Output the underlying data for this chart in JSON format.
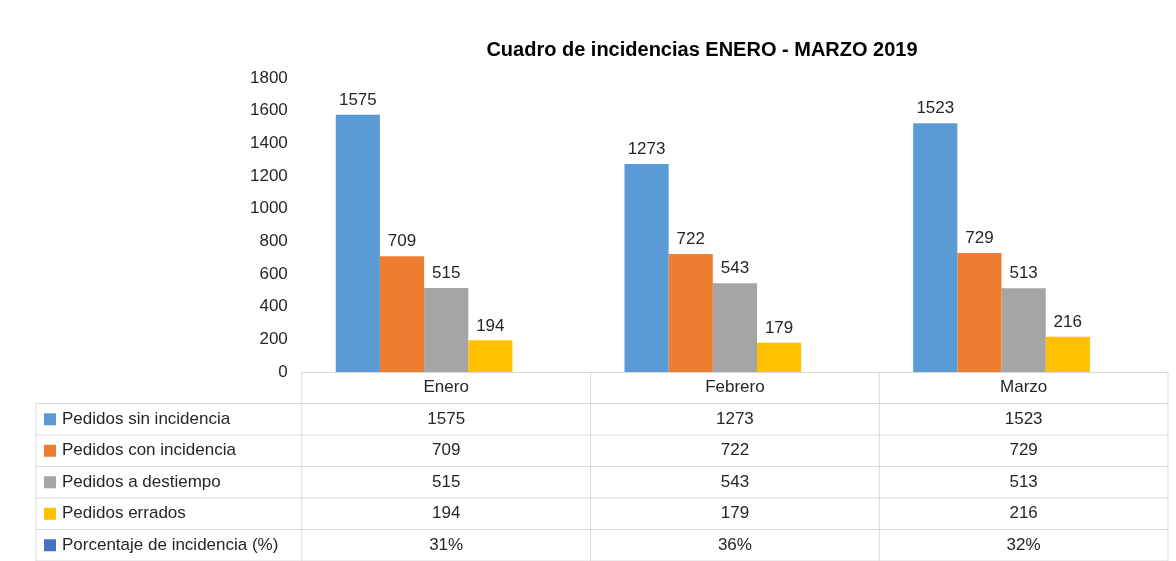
{
  "chart_data": {
    "type": "bar",
    "title": "Cuadro de incidencias ENERO - MARZO 2019",
    "categories": [
      "Enero",
      "Febrero",
      "Marzo"
    ],
    "series": [
      {
        "name": "Pedidos sin incidencia",
        "color": "#5b9bd5",
        "values": [
          1575,
          1273,
          1523
        ],
        "value_labels": [
          "1575",
          "1273",
          "1523"
        ]
      },
      {
        "name": "Pedidos con incidencia",
        "color": "#ed7d31",
        "values": [
          709,
          722,
          729
        ],
        "value_labels": [
          "709",
          "722",
          "729"
        ]
      },
      {
        "name": "Pedidos a destiempo",
        "color": "#a5a5a5",
        "values": [
          515,
          543,
          513
        ],
        "value_labels": [
          "515",
          "543",
          "513"
        ]
      },
      {
        "name": "Pedidos errados",
        "color": "#ffc000",
        "values": [
          194,
          179,
          216
        ],
        "value_labels": [
          "194",
          "179",
          "216"
        ]
      },
      {
        "name": "Porcentaje de incidencia (%)",
        "color": "#4472c4",
        "values": [
          0.31,
          0.36,
          0.32
        ],
        "value_labels": [
          "31%",
          "36%",
          "32%"
        ]
      }
    ],
    "ylim": [
      0,
      1800
    ],
    "yticks": [
      0,
      200,
      400,
      600,
      800,
      1000,
      1200,
      1400,
      1600,
      1800
    ],
    "grid": false,
    "legend": "bottom"
  }
}
